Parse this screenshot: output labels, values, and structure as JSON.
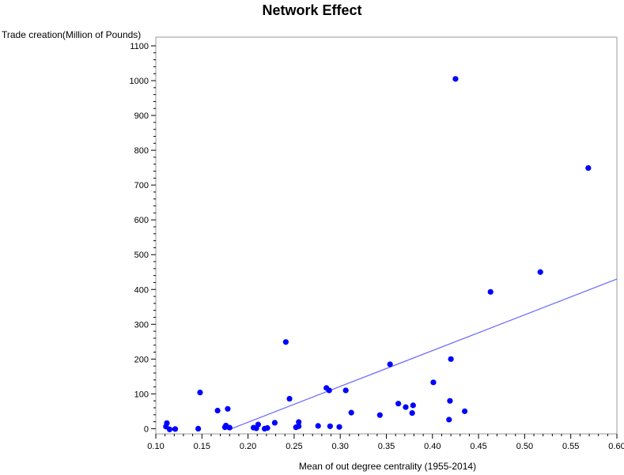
{
  "chart_data": {
    "type": "scatter",
    "title": "Network Effect",
    "xlabel": "Mean of out degree centrality (1955-2014)",
    "ylabel": "Trade creation(Million of Pounds)",
    "xlim": [
      0.1,
      0.6
    ],
    "ylim": [
      -15,
      1125
    ],
    "x_ticks": [
      "0.10",
      "0.15",
      "0.20",
      "0.25",
      "0.30",
      "0.35",
      "0.40",
      "0.45",
      "0.50",
      "0.55",
      "0.60"
    ],
    "y_ticks": [
      "0",
      "100",
      "200",
      "300",
      "400",
      "500",
      "600",
      "700",
      "800",
      "900",
      "1000",
      "1100"
    ],
    "grid": false,
    "marker_color": "#0000ff",
    "line_color": "#6666ff",
    "points": [
      {
        "x": 0.112,
        "y": 16
      },
      {
        "x": 0.111,
        "y": 6
      },
      {
        "x": 0.115,
        "y": -2
      },
      {
        "x": 0.121,
        "y": -1
      },
      {
        "x": 0.146,
        "y": 0
      },
      {
        "x": 0.148,
        "y": 104
      },
      {
        "x": 0.167,
        "y": 52
      },
      {
        "x": 0.175,
        "y": 4
      },
      {
        "x": 0.176,
        "y": 9
      },
      {
        "x": 0.178,
        "y": 57
      },
      {
        "x": 0.18,
        "y": 3
      },
      {
        "x": 0.206,
        "y": 3
      },
      {
        "x": 0.209,
        "y": 1
      },
      {
        "x": 0.211,
        "y": 12
      },
      {
        "x": 0.218,
        "y": 0
      },
      {
        "x": 0.221,
        "y": 2
      },
      {
        "x": 0.229,
        "y": 17
      },
      {
        "x": 0.241,
        "y": 249
      },
      {
        "x": 0.245,
        "y": 86
      },
      {
        "x": 0.252,
        "y": 4
      },
      {
        "x": 0.255,
        "y": 7
      },
      {
        "x": 0.255,
        "y": 19
      },
      {
        "x": 0.276,
        "y": 8
      },
      {
        "x": 0.285,
        "y": 117
      },
      {
        "x": 0.288,
        "y": 110
      },
      {
        "x": 0.289,
        "y": 7
      },
      {
        "x": 0.299,
        "y": 5
      },
      {
        "x": 0.306,
        "y": 110
      },
      {
        "x": 0.312,
        "y": 46
      },
      {
        "x": 0.343,
        "y": 39
      },
      {
        "x": 0.354,
        "y": 185
      },
      {
        "x": 0.363,
        "y": 72
      },
      {
        "x": 0.371,
        "y": 62
      },
      {
        "x": 0.378,
        "y": 45
      },
      {
        "x": 0.379,
        "y": 67
      },
      {
        "x": 0.401,
        "y": 133
      },
      {
        "x": 0.418,
        "y": 26
      },
      {
        "x": 0.419,
        "y": 80
      },
      {
        "x": 0.42,
        "y": 200
      },
      {
        "x": 0.425,
        "y": 1005
      },
      {
        "x": 0.435,
        "y": 50
      },
      {
        "x": 0.463,
        "y": 393
      },
      {
        "x": 0.517,
        "y": 450
      },
      {
        "x": 0.569,
        "y": 749
      }
    ],
    "fit_line": [
      {
        "x": 0.18,
        "y": -2
      },
      {
        "x": 0.6,
        "y": 430
      }
    ]
  }
}
